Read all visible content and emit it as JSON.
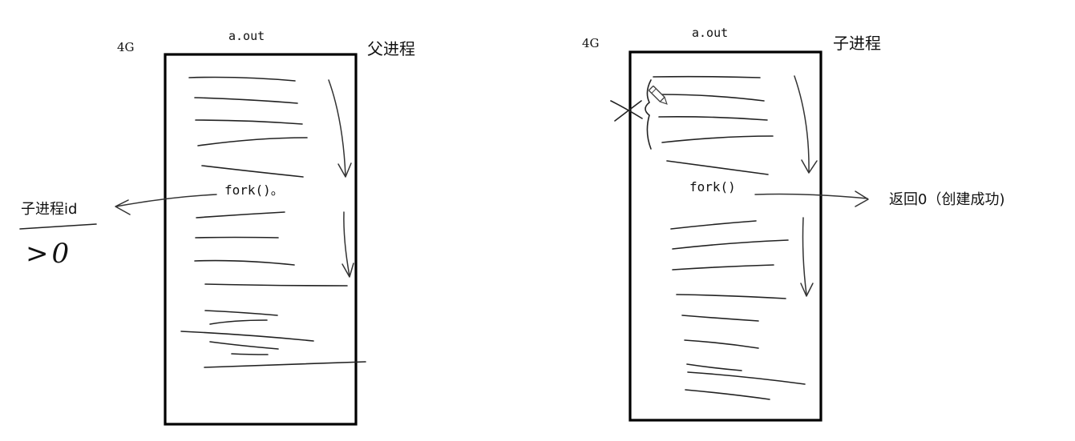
{
  "parent": {
    "memory_label": "4G",
    "program_label": "a.out",
    "process_label": "父进程",
    "fork_label": "fork()。",
    "return_label": "子进程id",
    "return_value": ">0"
  },
  "child": {
    "memory_label": "4G",
    "program_label": "a.out",
    "process_label": "子进程",
    "fork_label": "fork()",
    "return_label": "返回0（创建成功)"
  },
  "colors": {
    "ink": "#000000",
    "pencil": "#222222",
    "background": "#ffffff"
  },
  "icons": {
    "pencil_cursor": "pencil-icon"
  }
}
